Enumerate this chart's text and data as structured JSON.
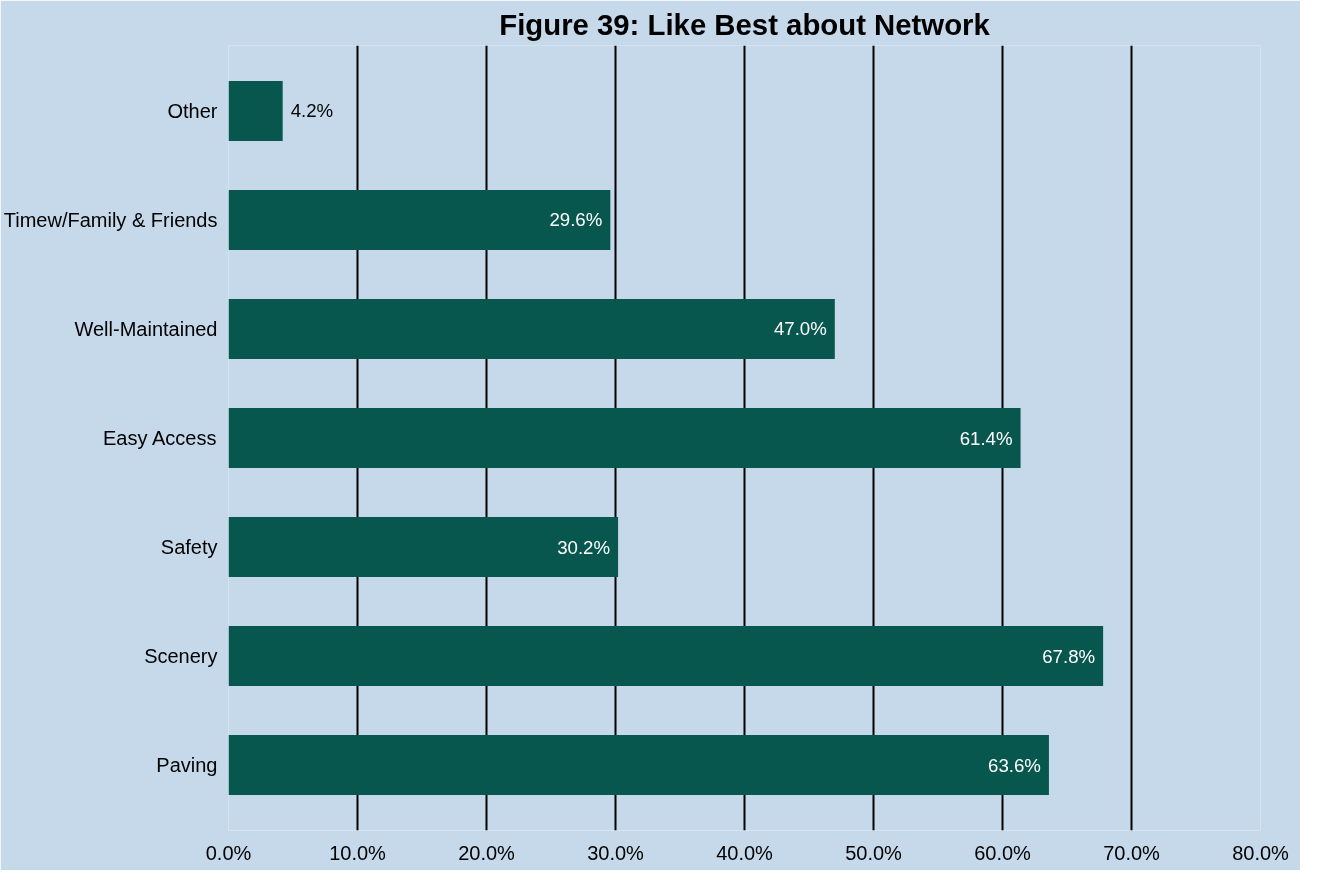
{
  "chart_data": {
    "type": "bar",
    "orientation": "horizontal",
    "title": "Figure 39: Like Best about Network",
    "categories": [
      "Other",
      "Timew/Family & Friends",
      "Well-Maintained",
      "Easy Access",
      "Safety",
      "Scenery",
      "Paving"
    ],
    "values": [
      4.2,
      29.6,
      47.0,
      61.4,
      30.2,
      67.8,
      63.6
    ],
    "value_labels": [
      "4.2%",
      "29.6%",
      "47.0%",
      "61.4%",
      "30.2%",
      "67.8%",
      "63.6%"
    ],
    "color": "#07574f",
    "xlim": [
      0,
      80
    ],
    "xticks": [
      {
        "value": 0,
        "label": "0.0%"
      },
      {
        "value": 10,
        "label": "10.0%"
      },
      {
        "value": 20,
        "label": "20.0%"
      },
      {
        "value": 30,
        "label": "30.0%"
      },
      {
        "value": 40,
        "label": "40.0%"
      },
      {
        "value": 50,
        "label": "50.0%"
      },
      {
        "value": 60,
        "label": "60.0%"
      },
      {
        "value": 70,
        "label": "70.0%"
      },
      {
        "value": 80,
        "label": "80.0%"
      }
    ],
    "grid": "x"
  }
}
